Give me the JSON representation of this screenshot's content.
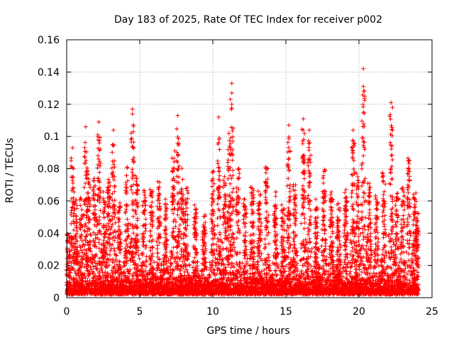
{
  "chart_data": {
    "type": "scatter",
    "title": "Day 183 of 2025, Rate Of TEC Index for receiver p002",
    "xlabel": "GPS time / hours",
    "ylabel": "ROTI / TECUs",
    "xlim": [
      0,
      25
    ],
    "ylim": [
      0,
      0.16
    ],
    "x_ticks": [
      0,
      5,
      10,
      15,
      20,
      25
    ],
    "x_tick_labels": [
      "0",
      "5",
      "10",
      "15",
      "20",
      "25"
    ],
    "y_ticks": [
      0,
      0.02,
      0.04,
      0.06,
      0.08,
      0.1,
      0.12,
      0.14,
      0.16
    ],
    "y_tick_labels": [
      "0",
      "0.02",
      "0.04",
      "0.06",
      "0.08",
      "0.1",
      "0.12",
      "0.14",
      "0.16"
    ],
    "grid": true,
    "marker": "plus",
    "color": "#ff0000",
    "bursts": [
      {
        "x": 0.1,
        "peak": 0.04
      },
      {
        "x": 0.4,
        "peak": 0.094
      },
      {
        "x": 0.6,
        "peak": 0.07
      },
      {
        "x": 1.0,
        "peak": 0.065
      },
      {
        "x": 1.3,
        "peak": 0.106
      },
      {
        "x": 1.5,
        "peak": 0.089
      },
      {
        "x": 1.9,
        "peak": 0.078
      },
      {
        "x": 2.2,
        "peak": 0.11
      },
      {
        "x": 2.6,
        "peak": 0.07
      },
      {
        "x": 2.9,
        "peak": 0.081
      },
      {
        "x": 3.2,
        "peak": 0.105
      },
      {
        "x": 3.6,
        "peak": 0.062
      },
      {
        "x": 4.1,
        "peak": 0.086
      },
      {
        "x": 4.5,
        "peak": 0.118
      },
      {
        "x": 4.8,
        "peak": 0.08
      },
      {
        "x": 5.3,
        "peak": 0.07
      },
      {
        "x": 5.8,
        "peak": 0.072
      },
      {
        "x": 6.3,
        "peak": 0.078
      },
      {
        "x": 6.8,
        "peak": 0.066
      },
      {
        "x": 7.3,
        "peak": 0.1
      },
      {
        "x": 7.6,
        "peak": 0.114
      },
      {
        "x": 7.9,
        "peak": 0.09
      },
      {
        "x": 8.2,
        "peak": 0.075
      },
      {
        "x": 8.8,
        "peak": 0.06
      },
      {
        "x": 9.4,
        "peak": 0.055
      },
      {
        "x": 10.0,
        "peak": 0.084
      },
      {
        "x": 10.4,
        "peak": 0.113
      },
      {
        "x": 10.8,
        "peak": 0.08
      },
      {
        "x": 11.1,
        "peak": 0.104
      },
      {
        "x": 11.3,
        "peak": 0.134
      },
      {
        "x": 11.7,
        "peak": 0.09
      },
      {
        "x": 12.2,
        "peak": 0.066
      },
      {
        "x": 12.7,
        "peak": 0.072
      },
      {
        "x": 13.2,
        "peak": 0.07
      },
      {
        "x": 13.7,
        "peak": 0.086
      },
      {
        "x": 14.3,
        "peak": 0.07
      },
      {
        "x": 14.8,
        "peak": 0.06
      },
      {
        "x": 15.2,
        "peak": 0.108
      },
      {
        "x": 15.6,
        "peak": 0.075
      },
      {
        "x": 16.2,
        "peak": 0.112
      },
      {
        "x": 16.6,
        "peak": 0.105
      },
      {
        "x": 17.1,
        "peak": 0.07
      },
      {
        "x": 17.6,
        "peak": 0.086
      },
      {
        "x": 18.1,
        "peak": 0.07
      },
      {
        "x": 18.6,
        "peak": 0.062
      },
      {
        "x": 19.1,
        "peak": 0.07
      },
      {
        "x": 19.6,
        "peak": 0.105
      },
      {
        "x": 19.9,
        "peak": 0.082
      },
      {
        "x": 20.3,
        "peak": 0.143
      },
      {
        "x": 20.7,
        "peak": 0.076
      },
      {
        "x": 21.2,
        "peak": 0.066
      },
      {
        "x": 21.7,
        "peak": 0.082
      },
      {
        "x": 22.2,
        "peak": 0.122
      },
      {
        "x": 22.6,
        "peak": 0.07
      },
      {
        "x": 23.0,
        "peak": 0.072
      },
      {
        "x": 23.4,
        "peak": 0.092
      },
      {
        "x": 23.8,
        "peak": 0.068
      },
      {
        "x": 24.0,
        "peak": 0.054
      }
    ],
    "outliers": [
      {
        "x": 4.5,
        "y": 0.117
      },
      {
        "x": 4.5,
        "y": 0.114
      },
      {
        "x": 11.3,
        "y": 0.133
      },
      {
        "x": 11.3,
        "y": 0.127
      },
      {
        "x": 11.2,
        "y": 0.123
      },
      {
        "x": 20.3,
        "y": 0.142
      },
      {
        "x": 20.3,
        "y": 0.131
      },
      {
        "x": 20.4,
        "y": 0.125
      },
      {
        "x": 20.3,
        "y": 0.115
      },
      {
        "x": 22.2,
        "y": 0.121
      },
      {
        "x": 22.3,
        "y": 0.118
      },
      {
        "x": 7.6,
        "y": 0.113
      },
      {
        "x": 10.4,
        "y": 0.112
      },
      {
        "x": 16.2,
        "y": 0.111
      },
      {
        "x": 2.2,
        "y": 0.109
      },
      {
        "x": 15.2,
        "y": 0.107
      },
      {
        "x": 1.3,
        "y": 0.106
      },
      {
        "x": 3.2,
        "y": 0.104
      },
      {
        "x": 19.6,
        "y": 0.104
      },
      {
        "x": 22.3,
        "y": 0.104
      },
      {
        "x": 11.1,
        "y": 0.102
      },
      {
        "x": 20.3,
        "y": 0.097
      },
      {
        "x": 20.4,
        "y": 0.092
      },
      {
        "x": 19.5,
        "y": 0.093
      },
      {
        "x": 0.4,
        "y": 0.093
      },
      {
        "x": 16.6,
        "y": 0.104
      }
    ]
  }
}
